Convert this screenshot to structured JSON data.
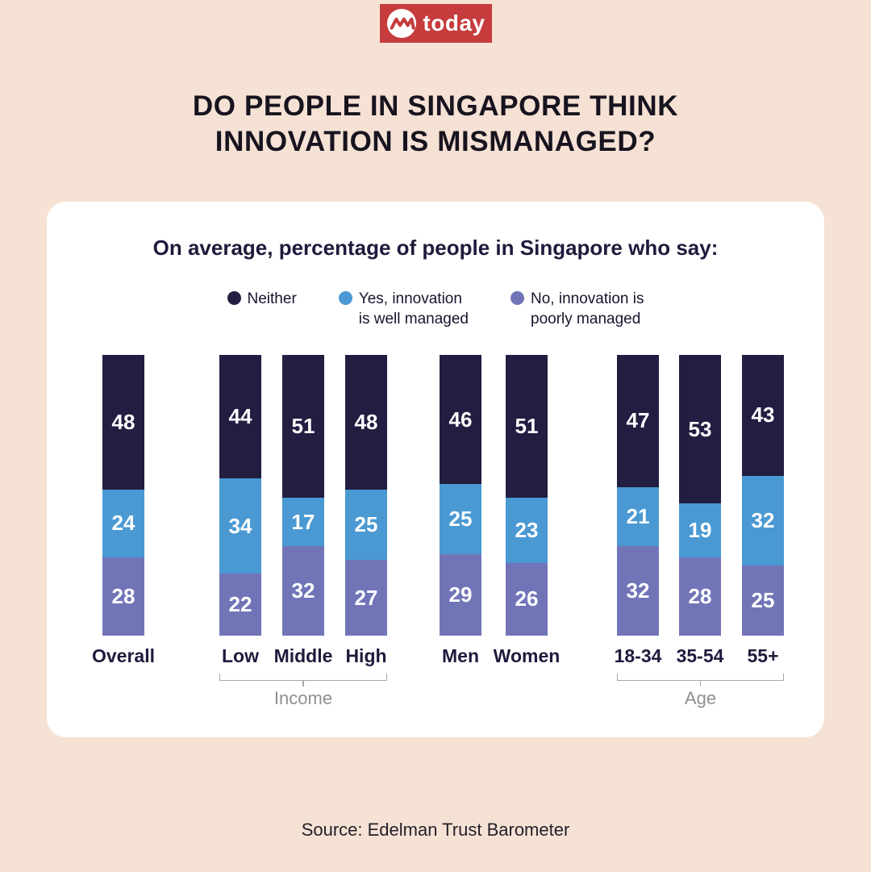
{
  "logo": {
    "text": "today"
  },
  "title": {
    "line1": "DO PEOPLE IN SINGAPORE THINK",
    "line2": "INNOVATION IS MISMANAGED?"
  },
  "chart": {
    "subtitle": "On average, percentage of people in Singapore who say:",
    "legend": [
      {
        "line1": "Neither",
        "line2": "",
        "color": "#221e41"
      },
      {
        "line1": "Yes, innovation",
        "line2": "is well managed",
        "color": "#4a99d3"
      },
      {
        "line1": "No, innovation is",
        "line2": "poorly managed",
        "color": "#7175b8"
      }
    ]
  },
  "chart_data": {
    "type": "bar",
    "stacked": true,
    "title": "On average, percentage of people in Singapore who say:",
    "categories": [
      "Overall",
      "Low",
      "Middle",
      "High",
      "Men",
      "Women",
      "18-34",
      "35-54",
      "55+"
    ],
    "groups": [
      {
        "label": "",
        "categories": [
          "Overall"
        ]
      },
      {
        "label": "Income",
        "categories": [
          "Low",
          "Middle",
          "High"
        ]
      },
      {
        "label": "",
        "categories": [
          "Men",
          "Women"
        ]
      },
      {
        "label": "Age",
        "categories": [
          "18-34",
          "35-54",
          "55+"
        ]
      }
    ],
    "series": [
      {
        "name": "Neither",
        "color": "#221e41",
        "values": [
          48,
          44,
          51,
          48,
          46,
          51,
          47,
          53,
          43
        ]
      },
      {
        "name": "Yes, innovation is well managed",
        "color": "#4a99d3",
        "values": [
          24,
          34,
          17,
          25,
          25,
          23,
          21,
          19,
          32
        ]
      },
      {
        "name": "No, innovation is poorly managed",
        "color": "#7175b8",
        "values": [
          28,
          22,
          32,
          27,
          29,
          26,
          32,
          28,
          25
        ]
      }
    ],
    "ylim": [
      0,
      100
    ],
    "grid": false,
    "legend_position": "top",
    "value_labels": "inside-white"
  },
  "source": {
    "text": "Source: Edelman Trust Barometer"
  },
  "theme": {
    "background": "#f5e2d5",
    "card": "#ffffff",
    "logo_red": "#c63b3c",
    "navy": "#221e41",
    "blue": "#4a99d3",
    "purple": "#7175b8",
    "bracket_gray": "#a8a8ac"
  }
}
